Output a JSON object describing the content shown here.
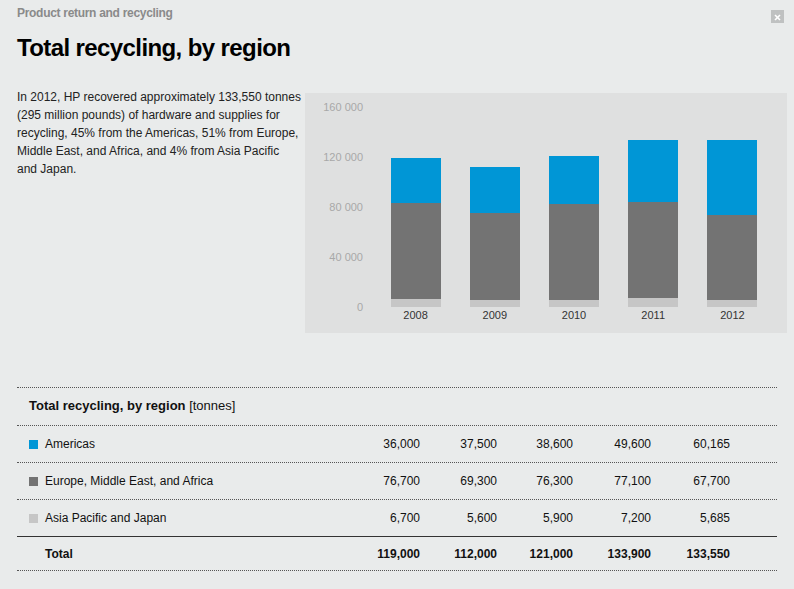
{
  "header": {
    "section": "Product return and recycling",
    "title": "Total recycling, by region"
  },
  "description": "In 2012, HP recovered approximately 133,550 tonnes (295 million pounds) of hardware and supplies for recycling, 45% from the Americas, 51% from Europe, Middle East, and Africa, and 4% from Asia Pacific and Japan.",
  "chart_data": {
    "type": "bar",
    "stacked": true,
    "grid": false,
    "categories": [
      "2008",
      "2009",
      "2010",
      "2011",
      "2012"
    ],
    "series": [
      {
        "name": "Asia Pacific and Japan",
        "color": "#c6c6c6",
        "values": [
          6700,
          5600,
          5900,
          7200,
          5685
        ]
      },
      {
        "name": "Europe, Middle East, and Africa",
        "color": "#737373",
        "values": [
          76700,
          69300,
          76300,
          77100,
          67700
        ]
      },
      {
        "name": "Americas",
        "color": "#0096d6",
        "values": [
          36000,
          37500,
          38600,
          49600,
          60165
        ]
      }
    ],
    "ylim": [
      0,
      160000
    ],
    "yticks": [
      0,
      {
        "value": 40000,
        "label": "40 000"
      },
      {
        "value": 80000,
        "label": "80 000"
      },
      {
        "value": 120000,
        "label": "120 000"
      },
      {
        "value": 160000,
        "label": "160 000"
      }
    ]
  },
  "table": {
    "title": "Total recycling, by region",
    "unit": "[tonnes]",
    "rows": [
      {
        "label": "Americas",
        "color": "#0096d6",
        "cells": [
          "36,000",
          "37,500",
          "38,600",
          "49,600",
          "60,165"
        ]
      },
      {
        "label": "Europe, Middle East, and Africa",
        "color": "#737373",
        "cells": [
          "76,700",
          "69,300",
          "76,300",
          "77,100",
          "67,700"
        ]
      },
      {
        "label": "Asia Pacific and Japan",
        "color": "#c6c6c6",
        "cells": [
          "6,700",
          "5,600",
          "5,900",
          "7,200",
          "5,685"
        ]
      }
    ],
    "total": {
      "label": "Total",
      "cells": [
        "119,000",
        "112,000",
        "121,000",
        "133,900",
        "133,550"
      ]
    }
  }
}
